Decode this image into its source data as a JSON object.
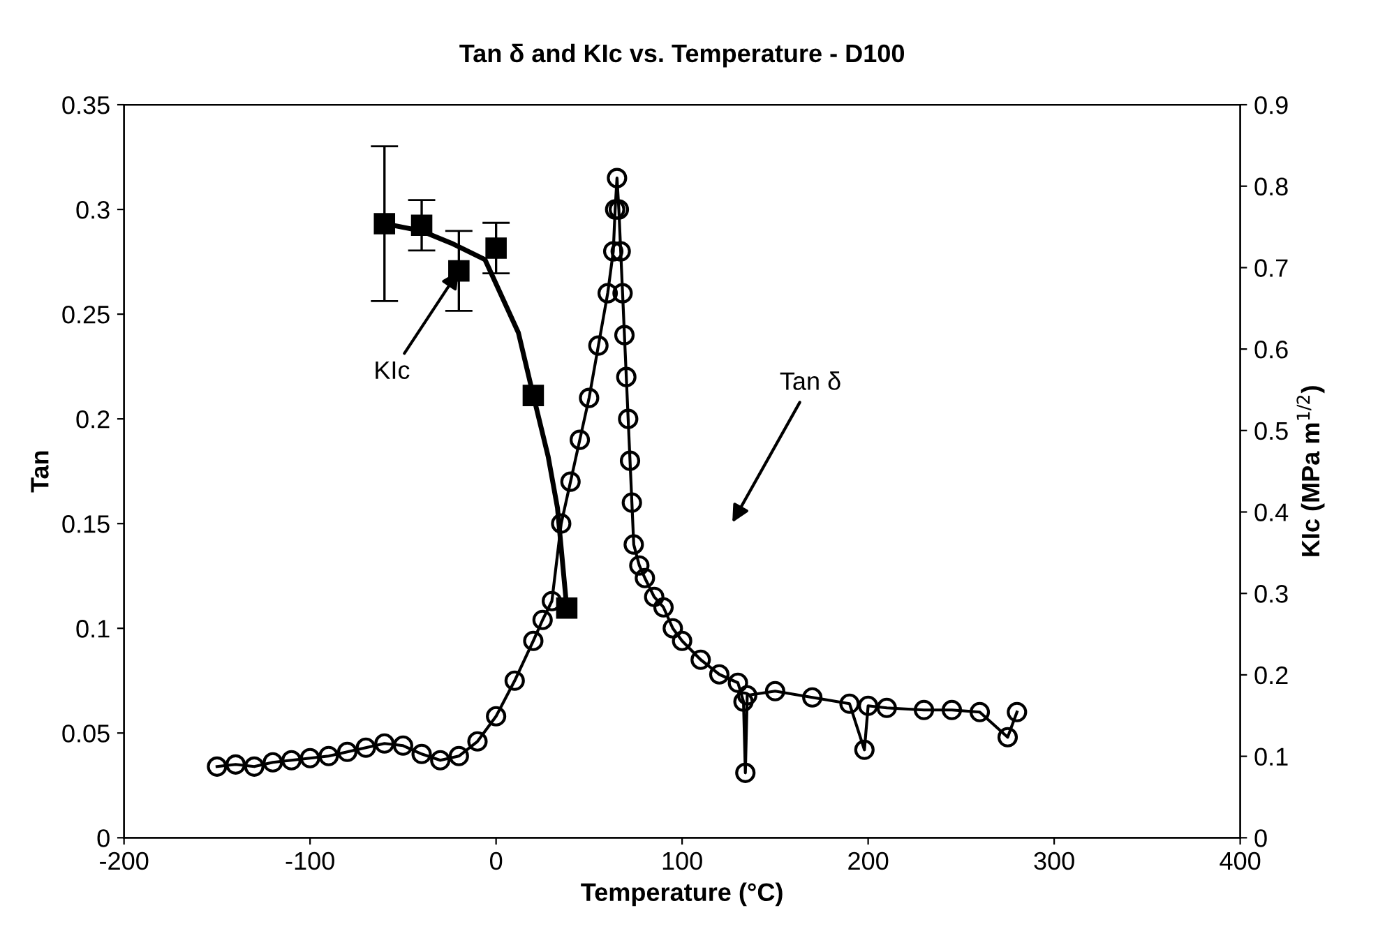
{
  "chart_data": {
    "type": "line",
    "title": "Tan δ and KIc vs. Temperature - D100",
    "xlabel": "Temperature (°C)",
    "ylabel": "Tan",
    "y2label": "KIc (MPa m$^{1/2}$)",
    "xlim": [
      -200,
      400
    ],
    "xticks": [
      -200,
      -100,
      0,
      100,
      200,
      300,
      400
    ],
    "ylim": [
      0,
      0.35
    ],
    "yticks": [
      0,
      0.05,
      0.1,
      0.15,
      0.2,
      0.25,
      0.3,
      0.35
    ],
    "y2lim": [
      0,
      0.9
    ],
    "y2ticks": [
      0,
      0.1,
      0.2,
      0.3,
      0.4,
      0.5,
      0.6,
      0.7,
      0.8,
      0.9
    ],
    "series": [
      {
        "marker": "circle",
        "color": "#000000",
        "x": [
          -150,
          -140,
          -130,
          -120,
          -110,
          -100,
          -90,
          -80,
          -70,
          -60,
          -50,
          -40,
          -30,
          -20,
          -10,
          0,
          10,
          20,
          25,
          30,
          35,
          40,
          45,
          50,
          55,
          60,
          63,
          64,
          65,
          66,
          67,
          68,
          69,
          70,
          71,
          72,
          73,
          74,
          77,
          80,
          85,
          90,
          95,
          100,
          110,
          120,
          130,
          133,
          134,
          135,
          150,
          170,
          190,
          198,
          200,
          210,
          230,
          245,
          260,
          275,
          280
        ],
        "values": [
          0.034,
          0.035,
          0.034,
          0.036,
          0.037,
          0.038,
          0.039,
          0.041,
          0.043,
          0.045,
          0.044,
          0.04,
          0.037,
          0.039,
          0.046,
          0.058,
          0.075,
          0.094,
          0.104,
          0.113,
          0.15,
          0.17,
          0.19,
          0.21,
          0.235,
          0.26,
          0.28,
          0.3,
          0.315,
          0.3,
          0.28,
          0.26,
          0.24,
          0.22,
          0.2,
          0.18,
          0.16,
          0.14,
          0.13,
          0.124,
          0.115,
          0.11,
          0.1,
          0.094,
          0.085,
          0.078,
          0.074,
          0.065,
          0.031,
          0.068,
          0.07,
          0.067,
          0.064,
          0.042,
          0.063,
          0.062,
          0.061,
          0.061,
          0.06,
          0.048,
          0.06
        ]
      },
      {
        "type": "scatter",
        "axis": "y2",
        "marker": "square",
        "color": "#000000",
        "x": [
          -60,
          -40,
          -20,
          0,
          20,
          38
        ],
        "values": [
          0.754,
          0.752,
          0.696,
          0.724,
          0.543,
          0.282
        ],
        "errors": [
          0.095,
          0.031,
          0.049,
          0.031,
          null,
          null
        ]
      },
      {
        "type": "line",
        "axis": "y2",
        "marker": "none",
        "color": "#000000",
        "x": [
          -60,
          -40,
          -24,
          -6,
          12,
          20,
          28,
          33,
          38
        ],
        "values": [
          0.754,
          0.745,
          0.73,
          0.71,
          0.62,
          0.543,
          0.468,
          0.405,
          0.282
        ]
      }
    ],
    "annotations": [
      {
        "text": "KIc",
        "x": -20,
        "y": 0.2707
      },
      "Tan δ"
    ]
  }
}
